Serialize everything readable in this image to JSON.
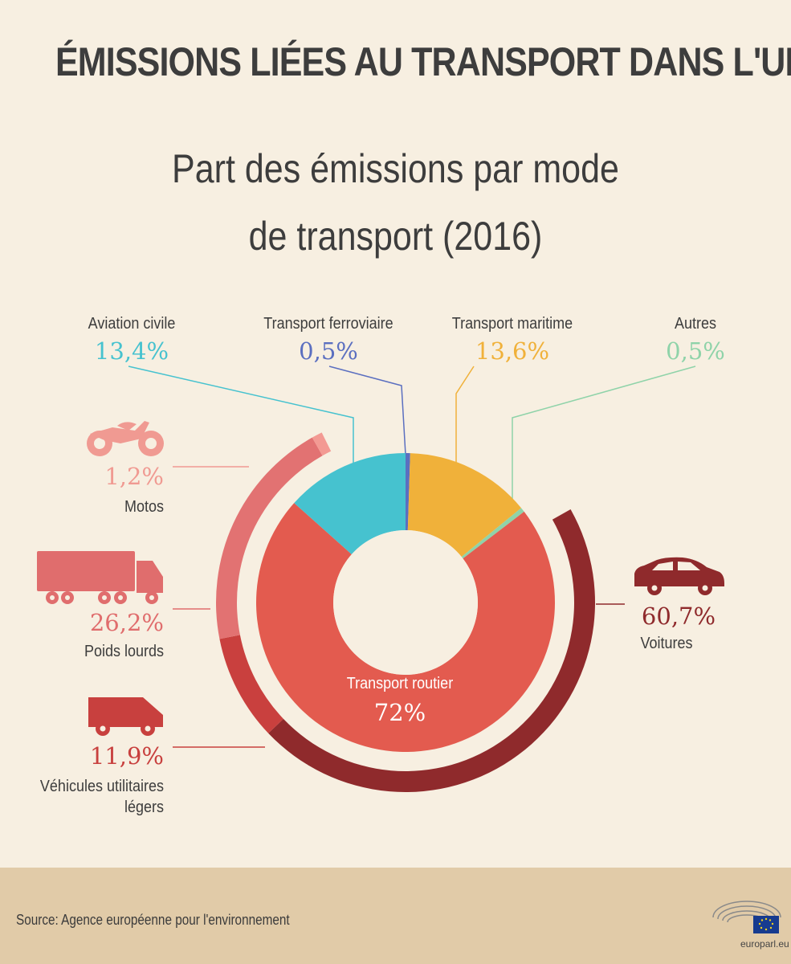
{
  "title": "ÉMISSIONS LIÉES AU TRANSPORT DANS L'UE",
  "subtitle_line1": "Part des émissions par mode",
  "subtitle_line2": "de transport (2016)",
  "source": "Source: Agence européenne pour l'environnement",
  "logo_text": "europarl.eu",
  "chart_data": [
    {
      "type": "pie",
      "subtype": "donut",
      "title": "Part des émissions par mode de transport (2016)",
      "unit": "%",
      "slices": [
        {
          "label": "Transport ferroviaire",
          "display": "0,5%",
          "value": 0.5,
          "color": "#5b6fc0"
        },
        {
          "label": "Transport maritime",
          "display": "13,6%",
          "value": 13.6,
          "color": "#f0b13a"
        },
        {
          "label": "Autres",
          "display": "0,5%",
          "value": 0.5,
          "color": "#8fd3a9"
        },
        {
          "label": "Transport routier",
          "display": "72%",
          "value": 72,
          "color": "#e35b4f"
        },
        {
          "label": "Aviation civile",
          "display": "13,4%",
          "value": 13.4,
          "color": "#46c2cf"
        }
      ]
    },
    {
      "type": "pie",
      "subtype": "outer-ring breakdown of Transport routier",
      "unit": "%",
      "slices": [
        {
          "label": "Voitures",
          "display": "60,7%",
          "value": 60.7,
          "color": "#8f2a2c"
        },
        {
          "label": "Véhicules utilitaires légers",
          "display": "11,9%",
          "value": 11.9,
          "color": "#c9403e"
        },
        {
          "label": "Poids lourds",
          "display": "26,2%",
          "value": 26.2,
          "color": "#e27272"
        },
        {
          "label": "Motos",
          "display": "1,2%",
          "value": 1.2,
          "color": "#f39a93"
        }
      ]
    }
  ]
}
